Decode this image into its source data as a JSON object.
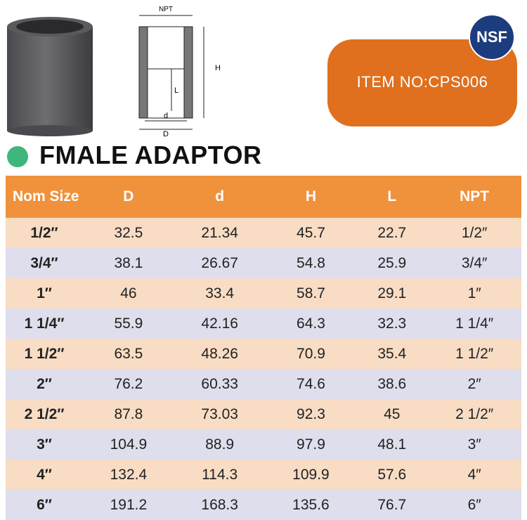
{
  "drawing": {
    "labels": {
      "npt": "NPT",
      "h": "H",
      "l": "L",
      "d_small": "d",
      "d_big": "D"
    }
  },
  "badge": {
    "logo": "NSF",
    "item": "ITEM NO:CPS006"
  },
  "title": "FMALE ADAPTOR",
  "table": {
    "header": [
      "Nom Size",
      "D",
      "d",
      "H",
      "L",
      "NPT"
    ],
    "rows": [
      [
        "1/2″",
        32.5,
        21.34,
        45.7,
        22.7,
        "1/2″"
      ],
      [
        "3/4″",
        38.1,
        26.67,
        54.8,
        25.9,
        "3/4″"
      ],
      [
        "1″",
        46,
        33.4,
        58.7,
        29.1,
        "1″"
      ],
      [
        "1 1/4″",
        55.9,
        42.16,
        64.3,
        32.3,
        "1 1/4″"
      ],
      [
        "1 1/2″",
        63.5,
        48.26,
        70.9,
        35.4,
        "1 1/2″"
      ],
      [
        "2″",
        76.2,
        60.33,
        74.6,
        38.6,
        "2″"
      ],
      [
        "2 1/2″",
        87.8,
        73.03,
        92.3,
        45,
        "2 1/2″"
      ],
      [
        "3″",
        104.9,
        88.9,
        97.9,
        48.1,
        "3″"
      ],
      [
        "4″",
        132.4,
        114.3,
        109.9,
        57.6,
        "4″"
      ],
      [
        "6″",
        191.2,
        168.3,
        135.6,
        76.7,
        "6″"
      ]
    ]
  }
}
